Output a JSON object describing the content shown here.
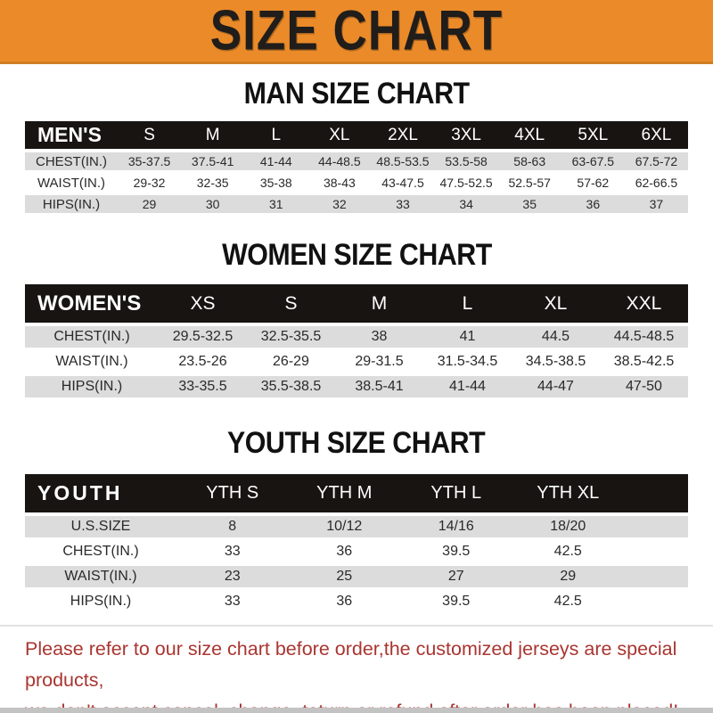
{
  "banner": {
    "title": "SIZE CHART"
  },
  "sections": [
    {
      "heading": "MAN SIZE CHART",
      "table": {
        "label": "MEN'S",
        "columns": [
          "S",
          "M",
          "L",
          "XL",
          "2XL",
          "3XL",
          "4XL",
          "5XL",
          "6XL"
        ],
        "rows": [
          {
            "label": "CHEST(IN.)",
            "values": [
              "35-37.5",
              "37.5-41",
              "41-44",
              "44-48.5",
              "48.5-53.5",
              "53.5-58",
              "58-63",
              "63-67.5",
              "67.5-72"
            ]
          },
          {
            "label": "WAIST(IN.)",
            "values": [
              "29-32",
              "32-35",
              "35-38",
              "38-43",
              "43-47.5",
              "47.5-52.5",
              "52.5-57",
              "57-62",
              "62-66.5"
            ]
          },
          {
            "label": "HIPS(IN.)",
            "values": [
              "29",
              "30",
              "31",
              "32",
              "33",
              "34",
              "35",
              "36",
              "37"
            ]
          }
        ]
      }
    },
    {
      "heading": "WOMEN SIZE CHART",
      "table": {
        "label": "WOMEN'S",
        "columns": [
          "XS",
          "S",
          "M",
          "L",
          "XL",
          "XXL"
        ],
        "rows": [
          {
            "label": "CHEST(IN.)",
            "values": [
              "29.5-32.5",
              "32.5-35.5",
              "38",
              "41",
              "44.5",
              "44.5-48.5"
            ]
          },
          {
            "label": "WAIST(IN.)",
            "values": [
              "23.5-26",
              "26-29",
              "29-31.5",
              "31.5-34.5",
              "34.5-38.5",
              "38.5-42.5"
            ]
          },
          {
            "label": "HIPS(IN.)",
            "values": [
              "33-35.5",
              "35.5-38.5",
              "38.5-41",
              "41-44",
              "44-47",
              "47-50"
            ]
          }
        ]
      }
    },
    {
      "heading": "YOUTH SIZE CHART",
      "table": {
        "label": "YOUTH",
        "columns": [
          "YTH S",
          "YTH M",
          "YTH L",
          "YTH XL"
        ],
        "rows": [
          {
            "label": "U.S.SIZE",
            "values": [
              "8",
              "10/12",
              "14/16",
              "18/20"
            ]
          },
          {
            "label": "CHEST(IN.)",
            "values": [
              "33",
              "36",
              "39.5",
              "42.5"
            ]
          },
          {
            "label": "WAIST(IN.)",
            "values": [
              "23",
              "25",
              "27",
              "29"
            ]
          },
          {
            "label": "HIPS(IN.)",
            "values": [
              "33",
              "36",
              "39.5",
              "42.5"
            ]
          }
        ]
      }
    }
  ],
  "footer": {
    "line1": "Please refer to our size chart before order,the customized jerseys are special products,",
    "line2": "we don't accept cancel, change, teturn or refund after order has been placed!"
  },
  "colors": {
    "banner_bg": "#EA8A29",
    "header_bar_bg": "#171411",
    "row_gray": "#DCDCDC",
    "note_red": "#A93530"
  }
}
